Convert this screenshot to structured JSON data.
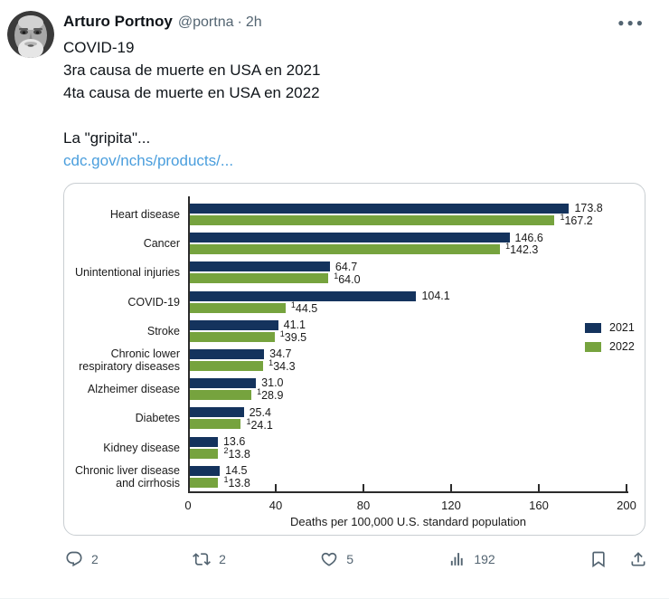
{
  "post": {
    "author": "Arturo Portnoy",
    "handle": "@portna",
    "separator": "·",
    "timestamp": "2h",
    "more_label": "●●●",
    "lines": [
      "COVID-19",
      "3ra causa de muerte en USA en 2021",
      "4ta causa de muerte en USA en 2022"
    ],
    "comment": "La \"gripita\"...",
    "link_text": "cdc.gov/nchs/products/..."
  },
  "chart_data": {
    "type": "bar",
    "orientation": "horizontal",
    "categories": [
      "Heart disease",
      "Cancer",
      "Unintentional injuries",
      "COVID-19",
      "Stroke",
      "Chronic lower respiratory diseases",
      "Alzheimer disease",
      "Diabetes",
      "Kidney disease",
      "Chronic liver disease and cirrhosis"
    ],
    "series": [
      {
        "name": "2021",
        "color": "#14335d",
        "values": [
          173.8,
          146.6,
          64.7,
          104.1,
          41.1,
          34.7,
          31.0,
          25.4,
          13.6,
          14.5
        ],
        "value_labels": [
          "173.8",
          "146.6",
          "64.7",
          "104.1",
          "41.1",
          "34.7",
          "31.0",
          "25.4",
          "13.6",
          "14.5"
        ],
        "footnotes": [
          "",
          "",
          "",
          "",
          "",
          "",
          "",
          "",
          "",
          ""
        ]
      },
      {
        "name": "2022",
        "color": "#76a33e",
        "values": [
          167.2,
          142.3,
          64.0,
          44.5,
          39.5,
          34.3,
          28.9,
          24.1,
          13.8,
          13.8
        ],
        "value_labels": [
          "167.2",
          "142.3",
          "64.0",
          "44.5",
          "39.5",
          "34.3",
          "28.9",
          "24.1",
          "13.8",
          "13.8"
        ],
        "footnotes": [
          "1",
          "1",
          "1",
          "1",
          "1",
          "1",
          "1",
          "1",
          "2",
          "1"
        ]
      }
    ],
    "xlabel": "Deaths per 100,000 U.S. standard population",
    "xlim": [
      0,
      200
    ],
    "xticks": [
      0,
      40,
      80,
      120,
      160,
      200
    ],
    "grid": false,
    "legend_position": "right"
  },
  "actions": {
    "reply_count": "2",
    "repost_count": "2",
    "like_count": "5",
    "view_count": "192"
  }
}
